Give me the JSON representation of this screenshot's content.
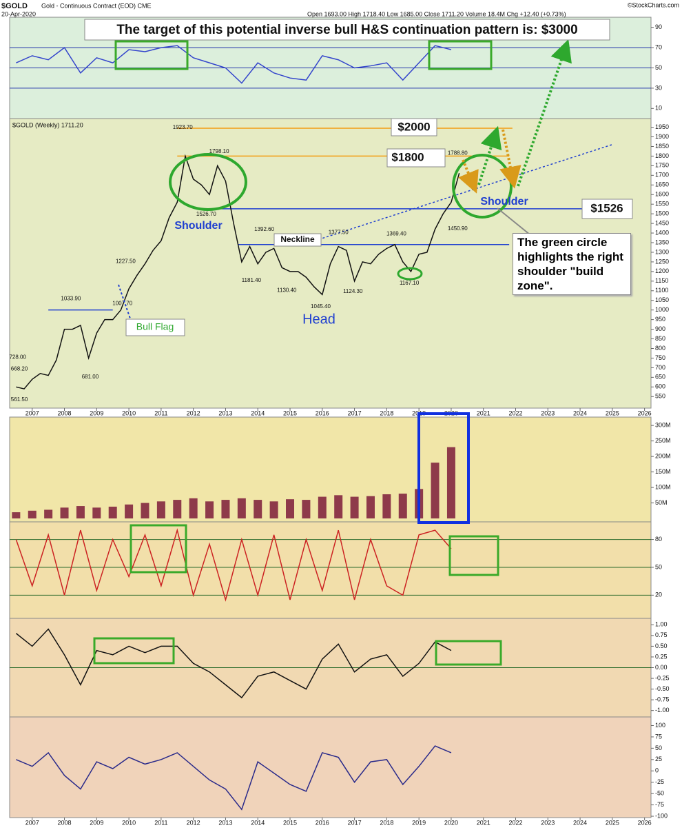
{
  "header": {
    "symbol": "$GOLD",
    "description": "Gold - Continuous Contract (EOD) CME",
    "date": "20-Apr-2020",
    "quote": "Open 1693.00 High 1718.40 Low 1685.00 Close 1711.20 Volume 18.4M Chg +12.40 (+0.73%)",
    "credit": "©StockCharts.com"
  },
  "chart_data": [
    {
      "type": "line",
      "background": "#e6ebc4",
      "xlim": [
        2006.3,
        2026.2
      ],
      "ylim": [
        490,
        1995
      ],
      "yticks": [
        550,
        600,
        650,
        700,
        750,
        800,
        850,
        900,
        950,
        1000,
        1050,
        1100,
        1150,
        1200,
        1250,
        1300,
        1350,
        1400,
        1450,
        1500,
        1550,
        1600,
        1650,
        1700,
        1750,
        1800,
        1850,
        1900,
        1950
      ],
      "xticks": [
        2007,
        2008,
        2009,
        2010,
        2011,
        2012,
        2013,
        2014,
        2015,
        2016,
        2017,
        2018,
        2019,
        2020,
        2021,
        2022,
        2023,
        2024,
        2025,
        2026
      ],
      "x": [
        2006.5,
        2006.75,
        2007.0,
        2007.25,
        2007.5,
        2007.75,
        2008.0,
        2008.25,
        2008.5,
        2008.75,
        2009.0,
        2009.25,
        2009.5,
        2009.75,
        2010.0,
        2010.25,
        2010.5,
        2010.75,
        2011.0,
        2011.25,
        2011.5,
        2011.75,
        2012.0,
        2012.25,
        2012.5,
        2012.75,
        2013.0,
        2013.25,
        2013.5,
        2013.75,
        2014.0,
        2014.25,
        2014.5,
        2014.75,
        2015.0,
        2015.25,
        2015.5,
        2015.75,
        2016.0,
        2016.25,
        2016.5,
        2016.75,
        2017.0,
        2017.25,
        2017.5,
        2017.75,
        2018.0,
        2018.25,
        2018.5,
        2018.75,
        2019.0,
        2019.25,
        2019.5,
        2019.75,
        2020.0,
        2020.25
      ],
      "series": [
        {
          "name": "$GOLD (Weekly) 1711.20",
          "color": "#111111",
          "values": [
            600,
            590,
            640,
            670,
            660,
            740,
            900,
            900,
            920,
            750,
            880,
            950,
            950,
            1000,
            1110,
            1180,
            1240,
            1310,
            1360,
            1480,
            1560,
            1800,
            1680,
            1650,
            1600,
            1750,
            1670,
            1450,
            1250,
            1330,
            1240,
            1300,
            1320,
            1220,
            1200,
            1200,
            1170,
            1120,
            1080,
            1240,
            1330,
            1310,
            1150,
            1250,
            1240,
            1290,
            1320,
            1340,
            1250,
            1200,
            1290,
            1300,
            1420,
            1500,
            1560,
            1711.2
          ]
        }
      ],
      "price_labels": [
        {
          "x": 2011.67,
          "value": 1923.7,
          "label": "1923.70"
        },
        {
          "x": 2012.8,
          "value": 1798.1,
          "label": "1798.10"
        },
        {
          "x": 2012.4,
          "value": 1526.7,
          "label": "1526.70"
        },
        {
          "x": 2014.2,
          "value": 1392.6,
          "label": "1392.60"
        },
        {
          "x": 2016.5,
          "value": 1377.5,
          "label": "1377.50"
        },
        {
          "x": 2018.3,
          "value": 1369.4,
          "label": "1369.40"
        },
        {
          "x": 2020.2,
          "value": 1788.8,
          "label": "1788.80"
        },
        {
          "x": 2020.2,
          "value": 1450.9,
          "label": "1450.90"
        },
        {
          "x": 2009.9,
          "value": 1227.5,
          "label": "1227.50"
        },
        {
          "x": 2008.2,
          "value": 1033.9,
          "label": "1033.90"
        },
        {
          "x": 2009.8,
          "value": 1007.7,
          "label": "1007.70"
        },
        {
          "x": 2006.55,
          "value": 728,
          "label": "728.00"
        },
        {
          "x": 2006.6,
          "value": 668.2,
          "label": "668.20"
        },
        {
          "x": 2006.6,
          "value": 561.5,
          "label": "561.50"
        },
        {
          "x": 2008.8,
          "value": 681,
          "label": "681.00"
        },
        {
          "x": 2013.8,
          "value": 1181.4,
          "label": "1181.40"
        },
        {
          "x": 2014.9,
          "value": 1130.4,
          "label": "1130.40"
        },
        {
          "x": 2015.95,
          "value": 1045.4,
          "label": "1045.40"
        },
        {
          "x": 2016.95,
          "value": 1124.3,
          "label": "1124.30"
        },
        {
          "x": 2018.7,
          "value": 1167.1,
          "label": "1167.10"
        }
      ],
      "levels": [
        {
          "value": 1945,
          "from": 2011.5,
          "to": 2021.9,
          "color": "#f39c12"
        },
        {
          "value": 1800,
          "from": 2011.5,
          "to": 2021.8,
          "color": "#f39c12"
        },
        {
          "value": 1526,
          "from": 2012.5,
          "to": 2025.0,
          "color": "#1f3fd0"
        },
        {
          "value": 1340,
          "from": 2013.4,
          "to": 2021.8,
          "color": "#1f3fd0"
        },
        {
          "value": 1000,
          "from": 2007.5,
          "to": 2009.5,
          "color": "#1f3fd0"
        }
      ],
      "trendline": {
        "x": [
          2015.4,
          2025.0
        ],
        "values": [
          1340,
          1860
        ],
        "color": "#1f3fd0"
      },
      "annotations": {
        "target": "The target of this potential inverse bull H&S continuation pattern is: $3000",
        "p2000": "$2000",
        "p1800": "$1800",
        "p1526": "$1526",
        "left_shoulder": "Shoulder",
        "right_shoulder": "Shoulder",
        "head": "Head",
        "neckline": "Neckline",
        "bull_flag": "Bull Flag",
        "note": "The green circle highlights the right shoulder \"build zone\"."
      }
    },
    {
      "type": "line",
      "background": "#dcefdc",
      "xlim": [
        2006.3,
        2026.2
      ],
      "ylim": [
        0,
        100
      ],
      "yticks": [
        10,
        30,
        50,
        70,
        90
      ],
      "reflines": [
        30,
        50,
        70
      ],
      "refcolor": "#2233aa",
      "x": [
        2006.5,
        2007.0,
        2007.5,
        2008.0,
        2008.5,
        2009.0,
        2009.5,
        2010.0,
        2010.5,
        2011.0,
        2011.5,
        2012.0,
        2012.5,
        2013.0,
        2013.5,
        2014.0,
        2014.5,
        2015.0,
        2015.5,
        2016.0,
        2016.5,
        2017.0,
        2017.5,
        2018.0,
        2018.5,
        2019.0,
        2019.5,
        2020.0
      ],
      "series": [
        {
          "color": "#3344cc",
          "values": [
            55,
            62,
            58,
            70,
            45,
            60,
            55,
            68,
            66,
            70,
            72,
            60,
            55,
            50,
            35,
            55,
            45,
            40,
            38,
            62,
            58,
            50,
            52,
            55,
            38,
            55,
            72,
            68
          ]
        }
      ]
    },
    {
      "type": "bar",
      "background": "#f1e6a8",
      "xlim": [
        2006.3,
        2026.2
      ],
      "ylim": [
        -11,
        327
      ],
      "yticks": [
        {
          "value": 50,
          "label": "50M"
        },
        {
          "value": 100,
          "label": "100M"
        },
        {
          "value": 150,
          "label": "150M"
        },
        {
          "value": 200,
          "label": "200M"
        },
        {
          "value": 250,
          "label": "250M"
        },
        {
          "value": 300,
          "label": "300M"
        }
      ],
      "x": [
        2006.5,
        2007.0,
        2007.5,
        2008.0,
        2008.5,
        2009.0,
        2009.5,
        2010.0,
        2010.5,
        2011.0,
        2011.5,
        2012.0,
        2012.5,
        2013.0,
        2013.5,
        2014.0,
        2014.5,
        2015.0,
        2015.5,
        2016.0,
        2016.5,
        2017.0,
        2017.5,
        2018.0,
        2018.5,
        2019.0,
        2019.5,
        2020.0
      ],
      "series": [
        {
          "color": "#8e3a4a",
          "values": [
            20,
            25,
            28,
            35,
            40,
            35,
            38,
            45,
            50,
            55,
            60,
            65,
            55,
            60,
            65,
            60,
            55,
            62,
            60,
            70,
            75,
            70,
            72,
            78,
            80,
            95,
            180,
            230
          ]
        }
      ]
    },
    {
      "type": "line",
      "background": "#f2dfaa",
      "xlim": [
        2006.3,
        2026.2
      ],
      "ylim": [
        -5,
        99
      ],
      "yticks": [
        20,
        50,
        80
      ],
      "reflines": [
        20,
        50,
        80
      ],
      "refcolor": "#2a6a2a",
      "x": [
        2006.5,
        2007.0,
        2007.5,
        2008.0,
        2008.5,
        2009.0,
        2009.5,
        2010.0,
        2010.5,
        2011.0,
        2011.5,
        2012.0,
        2012.5,
        2013.0,
        2013.5,
        2014.0,
        2014.5,
        2015.0,
        2015.5,
        2016.0,
        2016.5,
        2017.0,
        2017.5,
        2018.0,
        2018.5,
        2019.0,
        2019.5,
        2020.0
      ],
      "series": [
        {
          "color": "#cc2222",
          "values": [
            80,
            30,
            85,
            20,
            90,
            25,
            80,
            40,
            85,
            30,
            90,
            20,
            75,
            15,
            80,
            20,
            85,
            15,
            80,
            25,
            90,
            15,
            80,
            30,
            20,
            85,
            90,
            70
          ]
        }
      ]
    },
    {
      "type": "line",
      "background": "#f1d9b2",
      "xlim": [
        2006.3,
        2026.2
      ],
      "ylim": [
        -1.15,
        1.15
      ],
      "yticks": [
        {
          "value": 1,
          "label": "1.00"
        },
        {
          "value": 0.75,
          "label": "0.75"
        },
        {
          "value": 0.5,
          "label": "0.50"
        },
        {
          "value": 0.25,
          "label": "0.25"
        },
        {
          "value": 0,
          "label": "0.00"
        },
        {
          "value": -0.25,
          "label": "-0.25"
        },
        {
          "value": -0.5,
          "label": "-0.50"
        },
        {
          "value": -0.75,
          "label": "-0.75"
        },
        {
          "value": -1,
          "label": "-1.00"
        }
      ],
      "reflines": [
        0
      ],
      "refcolor": "#2a6a2a",
      "x": [
        2006.5,
        2007.0,
        2007.5,
        2008.0,
        2008.5,
        2009.0,
        2009.5,
        2010.0,
        2010.5,
        2011.0,
        2011.5,
        2012.0,
        2012.5,
        2013.0,
        2013.5,
        2014.0,
        2014.5,
        2015.0,
        2015.5,
        2016.0,
        2016.5,
        2017.0,
        2017.5,
        2018.0,
        2018.5,
        2019.0,
        2019.5,
        2020.0
      ],
      "series": [
        {
          "color": "#111111",
          "values": [
            0.8,
            0.5,
            0.9,
            0.3,
            -0.4,
            0.4,
            0.3,
            0.5,
            0.35,
            0.5,
            0.5,
            0.1,
            -0.1,
            -0.4,
            -0.7,
            -0.2,
            -0.1,
            -0.3,
            -0.5,
            0.2,
            0.55,
            -0.1,
            0.2,
            0.3,
            -0.2,
            0.1,
            0.6,
            0.4
          ]
        }
      ]
    },
    {
      "type": "line",
      "background": "#f0d3ba",
      "xlim": [
        2006.3,
        2026.2
      ],
      "ylim": [
        -103,
        119
      ],
      "yticks": [
        100,
        75,
        50,
        25,
        0,
        -25,
        -50,
        -75,
        -100
      ],
      "xticks": [
        2007,
        2008,
        2009,
        2010,
        2011,
        2012,
        2013,
        2014,
        2015,
        2016,
        2017,
        2018,
        2019,
        2020,
        2021,
        2022,
        2023,
        2024,
        2025,
        2026
      ],
      "x": [
        2006.5,
        2007.0,
        2007.5,
        2008.0,
        2008.5,
        2009.0,
        2009.5,
        2010.0,
        2010.5,
        2011.0,
        2011.5,
        2012.0,
        2012.5,
        2013.0,
        2013.5,
        2014.0,
        2014.5,
        2015.0,
        2015.5,
        2016.0,
        2016.5,
        2017.0,
        2017.5,
        2018.0,
        2018.5,
        2019.0,
        2019.5,
        2020.0
      ],
      "series": [
        {
          "color": "#2a2a8a",
          "values": [
            25,
            10,
            40,
            -10,
            -40,
            20,
            5,
            30,
            15,
            25,
            40,
            10,
            -20,
            -40,
            -85,
            20,
            -5,
            -30,
            -45,
            40,
            30,
            -25,
            20,
            25,
            -30,
            10,
            55,
            40
          ]
        }
      ]
    }
  ]
}
